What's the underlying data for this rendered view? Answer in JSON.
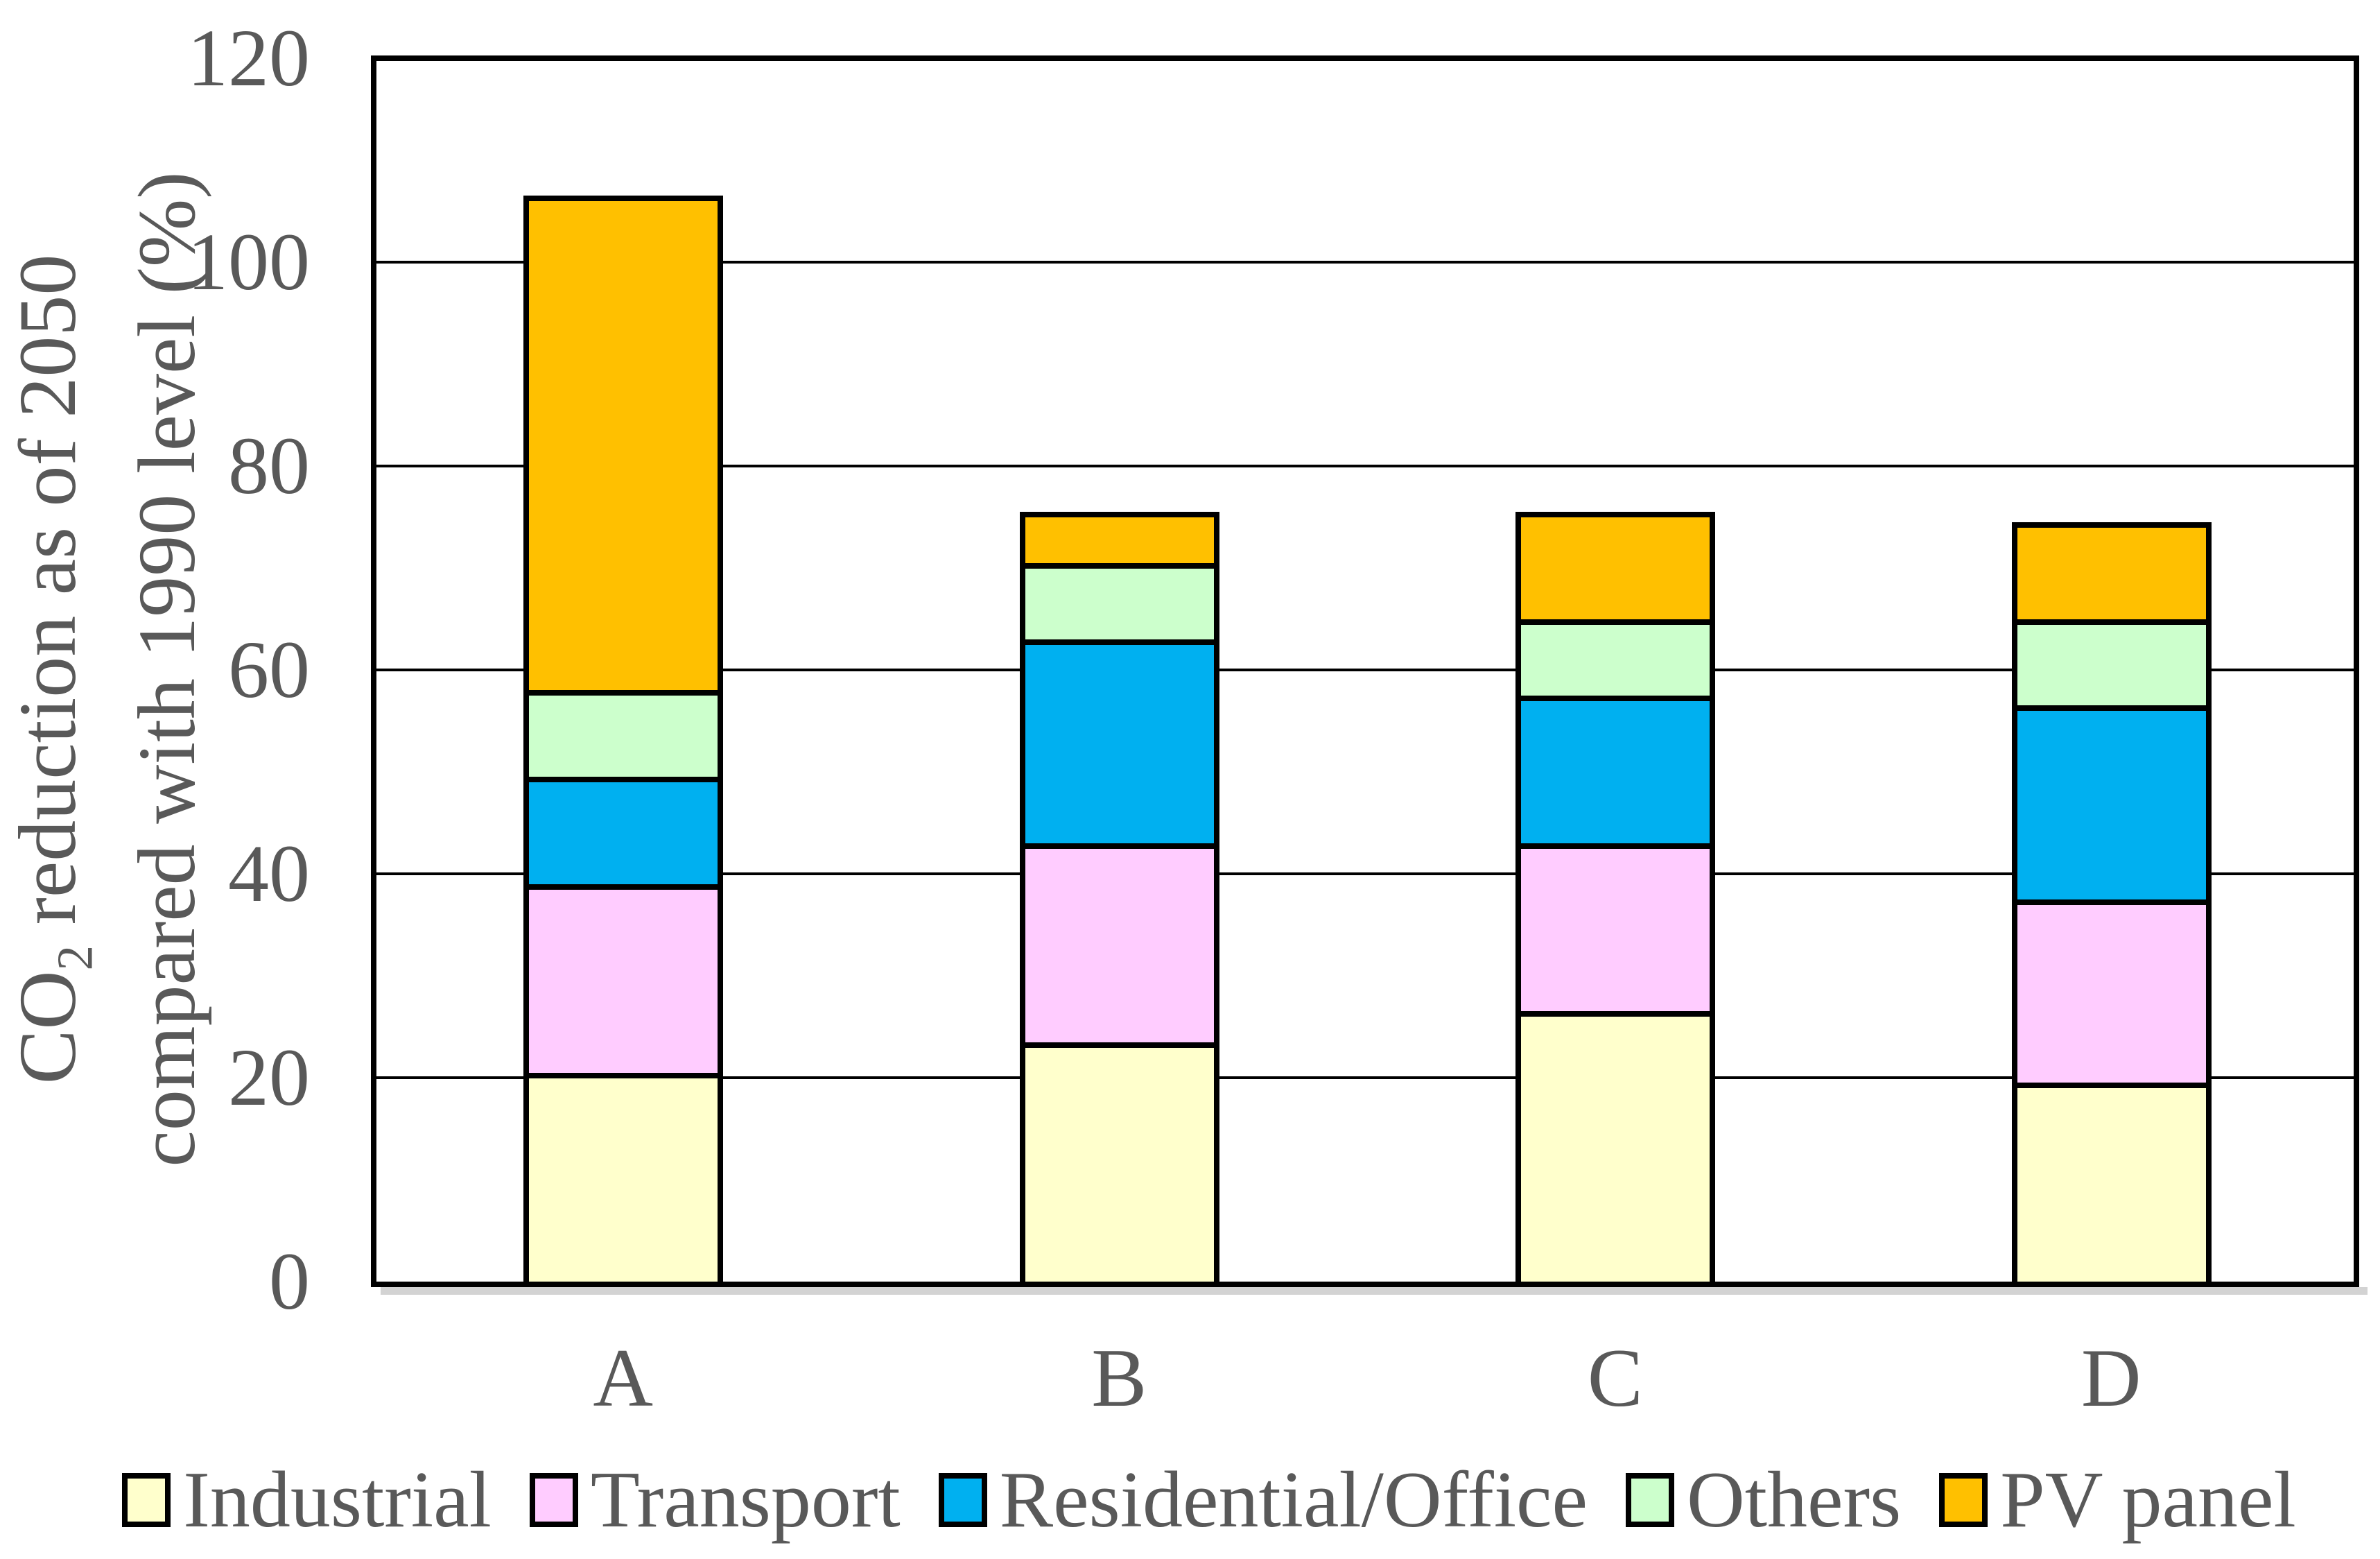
{
  "y_axis": {
    "title": {
      "prefix": "CO",
      "subscript": "2",
      "suffix": " reduction as of 2050",
      "line2": "compared with 1990 level (%)"
    },
    "tick_labels": [
      "0",
      "20",
      "40",
      "60",
      "80",
      "100",
      "120"
    ]
  },
  "x_labels": [
    "A",
    "B",
    "C",
    "D"
  ],
  "legend": {
    "items": [
      {
        "label": "Industrial",
        "color": "#FFFFCC"
      },
      {
        "label": "Transport",
        "color": "#FFCCFF"
      },
      {
        "label": "Residential/Office",
        "color": "#00B0F0"
      },
      {
        "label": "Others",
        "color": "#CCFFCC"
      },
      {
        "label": "PV panel",
        "color": "#FFC000"
      }
    ]
  },
  "colors": {
    "text": "#595959",
    "axis": "#000000",
    "gridline": "#000000",
    "shadow": "#D3D3D3",
    "background": "#FFFFFF"
  },
  "chart_data": {
    "type": "bar",
    "stacked": true,
    "title": "",
    "xlabel": "",
    "ylabel": "CO2 reduction as of 2050 compared with 1990 level (%)",
    "ylim": [
      0,
      120
    ],
    "ytick_interval": 20,
    "grid": true,
    "legend_position": "bottom",
    "categories": [
      "A",
      "B",
      "C",
      "D"
    ],
    "series": [
      {
        "name": "Industrial",
        "color": "#FFFFCC",
        "values": [
          20.5,
          23.5,
          26.5,
          19.5
        ]
      },
      {
        "name": "Transport",
        "color": "#FFCCFF",
        "values": [
          18.5,
          19.5,
          16.5,
          18.0
        ]
      },
      {
        "name": "Residential/Office",
        "color": "#00B0F0",
        "values": [
          10.5,
          20.0,
          14.5,
          19.0
        ]
      },
      {
        "name": "Others",
        "color": "#CCFFCC",
        "values": [
          8.5,
          7.5,
          7.5,
          8.5
        ]
      },
      {
        "name": "PV panel",
        "color": "#FFC000",
        "values": [
          48.5,
          5.0,
          10.5,
          9.5
        ]
      }
    ],
    "totals": [
      106.5,
      75.5,
      75.5,
      74.5
    ]
  }
}
